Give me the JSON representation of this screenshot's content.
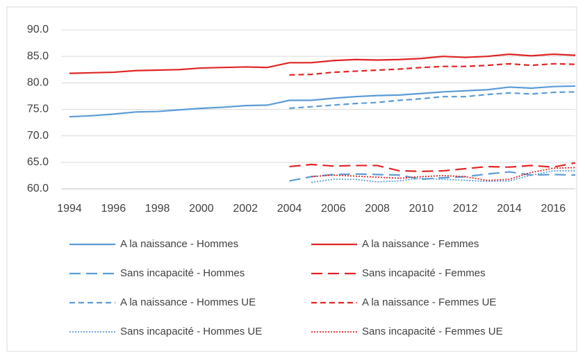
{
  "chart_data": {
    "type": "line",
    "x": [
      1994,
      1995,
      1996,
      1997,
      1998,
      1999,
      2000,
      2001,
      2002,
      2003,
      2004,
      2005,
      2006,
      2007,
      2008,
      2009,
      2010,
      2011,
      2012,
      2013,
      2014,
      2015,
      2016,
      2017
    ],
    "xlim": [
      1994,
      2017
    ],
    "xticks": [
      1994,
      1996,
      1998,
      2000,
      2002,
      2004,
      2006,
      2008,
      2010,
      2012,
      2014,
      2016
    ],
    "ylim": [
      60,
      90
    ],
    "yticks": [
      {
        "value": 60,
        "label": "60.0"
      },
      {
        "value": 65,
        "label": "65.0"
      },
      {
        "value": 70,
        "label": "70.0"
      },
      {
        "value": 75,
        "label": "75.0"
      },
      {
        "value": 80,
        "label": "80.0"
      },
      {
        "value": 85,
        "label": "85.0"
      },
      {
        "value": 90,
        "label": "90.0"
      }
    ],
    "grid": true,
    "legend": "bottom",
    "series": [
      {
        "name": "A la naissance - Hommes",
        "color": "#5b9bd5",
        "style": "solid",
        "values": [
          73.6,
          73.8,
          74.1,
          74.5,
          74.6,
          74.9,
          75.2,
          75.4,
          75.7,
          75.8,
          76.7,
          76.7,
          77.1,
          77.4,
          77.6,
          77.7,
          78.0,
          78.3,
          78.5,
          78.7,
          79.2,
          79.0,
          79.3,
          79.4
        ]
      },
      {
        "name": "A la naissance - Femmes",
        "color": "#e02424",
        "style": "solid",
        "values": [
          81.8,
          81.9,
          82.0,
          82.3,
          82.4,
          82.5,
          82.8,
          82.9,
          83.0,
          82.9,
          83.8,
          83.8,
          84.2,
          84.4,
          84.3,
          84.4,
          84.6,
          85.0,
          84.8,
          85.0,
          85.4,
          85.1,
          85.4,
          85.2
        ]
      },
      {
        "name": "Sans incapacité - Hommes",
        "color": "#5b9bd5",
        "style": "long-dash",
        "values": [
          null,
          null,
          null,
          null,
          null,
          null,
          null,
          null,
          null,
          null,
          61.5,
          62.3,
          62.7,
          62.8,
          62.7,
          62.6,
          61.8,
          62.1,
          62.3,
          62.8,
          63.2,
          62.6,
          62.7,
          62.6
        ]
      },
      {
        "name": "Sans incapacité - Femmes",
        "color": "#e02424",
        "style": "long-dash",
        "values": [
          null,
          null,
          null,
          null,
          null,
          null,
          null,
          null,
          null,
          null,
          64.2,
          64.6,
          64.3,
          64.4,
          64.4,
          63.4,
          63.3,
          63.4,
          63.8,
          64.2,
          64.1,
          64.4,
          64.1,
          64.9
        ]
      },
      {
        "name": "A la naissance - Hommes UE",
        "color": "#5b9bd5",
        "style": "short-dash",
        "values": [
          null,
          null,
          null,
          null,
          null,
          null,
          null,
          null,
          null,
          null,
          75.2,
          75.5,
          75.8,
          76.1,
          76.3,
          76.7,
          77.0,
          77.4,
          77.4,
          77.8,
          78.1,
          77.9,
          78.2,
          78.3
        ]
      },
      {
        "name": "A la naissance - Femmes UE",
        "color": "#e02424",
        "style": "short-dash",
        "values": [
          null,
          null,
          null,
          null,
          null,
          null,
          null,
          null,
          null,
          null,
          81.5,
          81.6,
          82.0,
          82.2,
          82.4,
          82.6,
          82.9,
          83.1,
          83.1,
          83.3,
          83.6,
          83.3,
          83.6,
          83.5
        ]
      },
      {
        "name": "Sans incapacité - Hommes UE",
        "color": "#5b9bd5",
        "style": "dot",
        "values": [
          null,
          null,
          null,
          null,
          null,
          null,
          null,
          null,
          null,
          null,
          null,
          61.2,
          61.8,
          61.8,
          61.3,
          61.5,
          62.0,
          61.8,
          61.6,
          61.4,
          61.5,
          62.6,
          63.4,
          63.4
        ]
      },
      {
        "name": "Sans incapacité - Femmes UE",
        "color": "#e02424",
        "style": "dot",
        "values": [
          null,
          null,
          null,
          null,
          null,
          null,
          null,
          null,
          null,
          null,
          null,
          62.3,
          62.6,
          62.4,
          62.2,
          62.0,
          62.3,
          62.5,
          62.3,
          61.6,
          61.8,
          63.1,
          63.9,
          64.0
        ]
      }
    ]
  }
}
